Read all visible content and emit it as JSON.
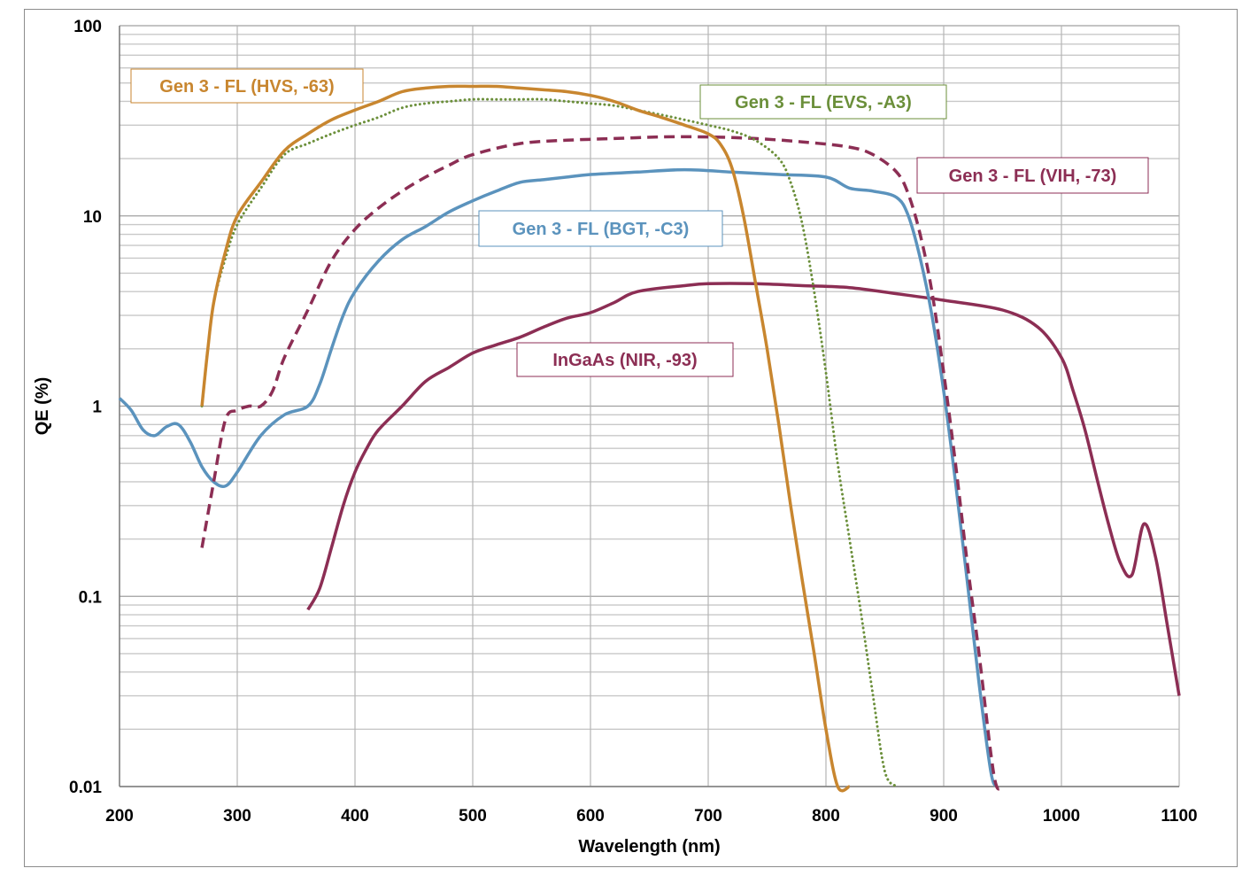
{
  "chart_data": {
    "type": "line",
    "xlabel": "Wavelength (nm)",
    "ylabel": "QE (%)",
    "xlim": [
      200,
      1100
    ],
    "ylim": [
      0.01,
      100
    ],
    "y_scale": "log",
    "grid": true,
    "x_ticks": [
      "200",
      "300",
      "400",
      "500",
      "600",
      "700",
      "800",
      "900",
      "1000",
      "1100"
    ],
    "y_ticks": [
      "100",
      "10",
      "1",
      "0.1",
      "0.01"
    ],
    "series": [
      {
        "name": "Gen 3 - FL (HVS, -63)",
        "color": "#c8862f",
        "style": "solid",
        "points": [
          [
            270,
            1.0
          ],
          [
            275,
            2.0
          ],
          [
            280,
            3.5
          ],
          [
            290,
            6.5
          ],
          [
            300,
            10
          ],
          [
            320,
            15
          ],
          [
            340,
            22
          ],
          [
            360,
            27
          ],
          [
            380,
            32
          ],
          [
            400,
            36
          ],
          [
            420,
            40
          ],
          [
            440,
            45
          ],
          [
            460,
            47
          ],
          [
            480,
            48
          ],
          [
            500,
            48
          ],
          [
            520,
            48
          ],
          [
            540,
            47
          ],
          [
            560,
            46
          ],
          [
            580,
            45
          ],
          [
            600,
            43
          ],
          [
            620,
            40
          ],
          [
            640,
            36
          ],
          [
            660,
            33
          ],
          [
            680,
            30
          ],
          [
            700,
            27
          ],
          [
            710,
            24
          ],
          [
            720,
            18
          ],
          [
            730,
            10
          ],
          [
            740,
            4.5
          ],
          [
            750,
            2
          ],
          [
            760,
            0.8
          ],
          [
            770,
            0.3
          ],
          [
            780,
            0.12
          ],
          [
            790,
            0.05
          ],
          [
            800,
            0.02
          ],
          [
            810,
            0.01
          ],
          [
            820,
            0.01
          ]
        ]
      },
      {
        "name": "Gen 3 - FL (EVS, -A3)",
        "color": "#6b8f3a",
        "style": "dotted",
        "points": [
          [
            270,
            1.0
          ],
          [
            275,
            2.0
          ],
          [
            280,
            3.5
          ],
          [
            290,
            6
          ],
          [
            300,
            9
          ],
          [
            320,
            14
          ],
          [
            340,
            21
          ],
          [
            360,
            24
          ],
          [
            380,
            27
          ],
          [
            400,
            30
          ],
          [
            420,
            33
          ],
          [
            440,
            37
          ],
          [
            460,
            39
          ],
          [
            480,
            40
          ],
          [
            500,
            41
          ],
          [
            520,
            41
          ],
          [
            540,
            41
          ],
          [
            560,
            41
          ],
          [
            580,
            40
          ],
          [
            600,
            39
          ],
          [
            620,
            38
          ],
          [
            640,
            36
          ],
          [
            660,
            34
          ],
          [
            680,
            32
          ],
          [
            700,
            30
          ],
          [
            720,
            28
          ],
          [
            740,
            25
          ],
          [
            760,
            20
          ],
          [
            770,
            15
          ],
          [
            780,
            9
          ],
          [
            790,
            4
          ],
          [
            800,
            1.5
          ],
          [
            810,
            0.5
          ],
          [
            820,
            0.2
          ],
          [
            830,
            0.08
          ],
          [
            840,
            0.03
          ],
          [
            850,
            0.012
          ],
          [
            860,
            0.01
          ]
        ]
      },
      {
        "name": "Gen 3 - FL (VIH, -73)",
        "color": "#8c2e54",
        "style": "dashed",
        "points": [
          [
            270,
            0.18
          ],
          [
            280,
            0.4
          ],
          [
            290,
            0.85
          ],
          [
            300,
            0.95
          ],
          [
            310,
            1.0
          ],
          [
            320,
            1.0
          ],
          [
            330,
            1.2
          ],
          [
            340,
            1.8
          ],
          [
            360,
            3.2
          ],
          [
            380,
            5.8
          ],
          [
            400,
            8.5
          ],
          [
            420,
            11
          ],
          [
            440,
            13.5
          ],
          [
            460,
            16
          ],
          [
            480,
            18.5
          ],
          [
            500,
            21
          ],
          [
            540,
            24
          ],
          [
            580,
            25
          ],
          [
            620,
            25.5
          ],
          [
            660,
            26
          ],
          [
            700,
            26
          ],
          [
            740,
            25.5
          ],
          [
            780,
            24.5
          ],
          [
            820,
            23
          ],
          [
            840,
            21
          ],
          [
            860,
            17
          ],
          [
            870,
            13
          ],
          [
            880,
            8
          ],
          [
            890,
            4
          ],
          [
            900,
            1.5
          ],
          [
            910,
            0.5
          ],
          [
            920,
            0.15
          ],
          [
            930,
            0.05
          ],
          [
            940,
            0.015
          ],
          [
            945,
            0.01
          ],
          [
            950,
            0.01
          ]
        ]
      },
      {
        "name": "Gen 3 - FL (BGT, -C3)",
        "color": "#5b93bd",
        "style": "solid",
        "points": [
          [
            200,
            1.1
          ],
          [
            210,
            0.95
          ],
          [
            220,
            0.75
          ],
          [
            230,
            0.7
          ],
          [
            240,
            0.78
          ],
          [
            250,
            0.8
          ],
          [
            260,
            0.65
          ],
          [
            270,
            0.48
          ],
          [
            280,
            0.4
          ],
          [
            290,
            0.38
          ],
          [
            300,
            0.45
          ],
          [
            320,
            0.7
          ],
          [
            340,
            0.9
          ],
          [
            360,
            1.0
          ],
          [
            370,
            1.3
          ],
          [
            380,
            2.0
          ],
          [
            390,
            3.0
          ],
          [
            400,
            4.0
          ],
          [
            420,
            5.8
          ],
          [
            440,
            7.5
          ],
          [
            460,
            8.8
          ],
          [
            480,
            10.5
          ],
          [
            500,
            12
          ],
          [
            520,
            13.5
          ],
          [
            540,
            15
          ],
          [
            560,
            15.5
          ],
          [
            580,
            16
          ],
          [
            600,
            16.5
          ],
          [
            640,
            17
          ],
          [
            680,
            17.5
          ],
          [
            720,
            17
          ],
          [
            760,
            16.5
          ],
          [
            800,
            16
          ],
          [
            820,
            14
          ],
          [
            840,
            13.5
          ],
          [
            860,
            12.5
          ],
          [
            870,
            10
          ],
          [
            880,
            6
          ],
          [
            890,
            3
          ],
          [
            900,
            1.2
          ],
          [
            910,
            0.4
          ],
          [
            920,
            0.12
          ],
          [
            930,
            0.035
          ],
          [
            940,
            0.012
          ],
          [
            945,
            0.01
          ]
        ]
      },
      {
        "name": "InGaAs (NIR, -93)",
        "color": "#8c2e54",
        "style": "solid",
        "points": [
          [
            360,
            0.085
          ],
          [
            370,
            0.11
          ],
          [
            380,
            0.18
          ],
          [
            390,
            0.3
          ],
          [
            400,
            0.45
          ],
          [
            410,
            0.6
          ],
          [
            420,
            0.75
          ],
          [
            440,
            1.0
          ],
          [
            460,
            1.35
          ],
          [
            480,
            1.6
          ],
          [
            500,
            1.9
          ],
          [
            520,
            2.1
          ],
          [
            540,
            2.3
          ],
          [
            560,
            2.6
          ],
          [
            580,
            2.9
          ],
          [
            600,
            3.1
          ],
          [
            620,
            3.5
          ],
          [
            640,
            4.0
          ],
          [
            680,
            4.3
          ],
          [
            700,
            4.4
          ],
          [
            740,
            4.4
          ],
          [
            780,
            4.3
          ],
          [
            820,
            4.2
          ],
          [
            860,
            3.9
          ],
          [
            900,
            3.6
          ],
          [
            950,
            3.2
          ],
          [
            980,
            2.6
          ],
          [
            1000,
            1.8
          ],
          [
            1010,
            1.2
          ],
          [
            1020,
            0.75
          ],
          [
            1030,
            0.42
          ],
          [
            1040,
            0.24
          ],
          [
            1050,
            0.15
          ],
          [
            1060,
            0.13
          ],
          [
            1070,
            0.24
          ],
          [
            1080,
            0.16
          ],
          [
            1090,
            0.07
          ],
          [
            1100,
            0.03
          ]
        ]
      }
    ],
    "annotations": [
      {
        "text": "Gen 3 - FL (HVS, -63)",
        "series": 0
      },
      {
        "text": "Gen 3 - FL (EVS, -A3)",
        "series": 1
      },
      {
        "text": "Gen 3 - FL (VIH, -73)",
        "series": 2
      },
      {
        "text": "Gen 3 - FL (BGT, -C3)",
        "series": 3
      },
      {
        "text": "InGaAs (NIR, -93)",
        "series": 4
      }
    ]
  }
}
